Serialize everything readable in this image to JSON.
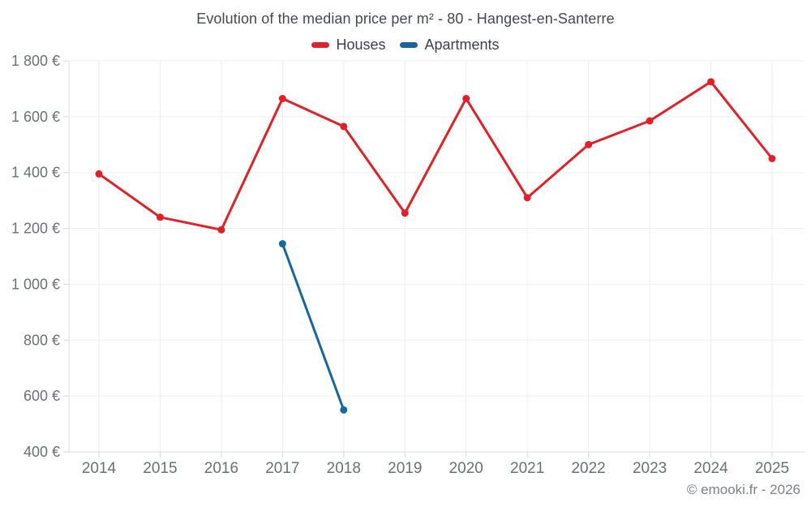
{
  "chart_data": {
    "type": "line",
    "title": "Evolution of the median price per m² - 80 - Hangest-en-Santerre",
    "x": [
      2014,
      2015,
      2016,
      2017,
      2018,
      2019,
      2020,
      2021,
      2022,
      2023,
      2024,
      2025
    ],
    "series": [
      {
        "name": "Houses",
        "color": "#e02128",
        "values": [
          1395,
          1240,
          1195,
          1665,
          1565,
          1255,
          1665,
          1310,
          1500,
          1585,
          1725,
          1450
        ]
      },
      {
        "name": "Apartments",
        "color": "#16689c",
        "values": [
          null,
          null,
          null,
          1145,
          550,
          null,
          null,
          null,
          null,
          null,
          null,
          null
        ]
      }
    ],
    "xlabel": "",
    "ylabel": "",
    "ylim": [
      400,
      1800
    ],
    "yticks": [
      400,
      600,
      800,
      1000,
      1200,
      1400,
      1600,
      1800
    ],
    "ytick_labels": [
      "400 €",
      "600 €",
      "800 €",
      "1 000 €",
      "1 200 €",
      "1 400 €",
      "1 600 €",
      "1 800 €"
    ],
    "grid": true,
    "legend_position": "top"
  },
  "footer": {
    "credit": "© emooki.fr - 2026"
  },
  "theme": {
    "background": "#ffffff",
    "grid_color": "#eeeeee",
    "axis_color": "#dcdddf",
    "tick_color": "#d6d8da",
    "title_color": "#45494d",
    "label_color": "#6b7074",
    "footer_color": "#7d8185"
  }
}
